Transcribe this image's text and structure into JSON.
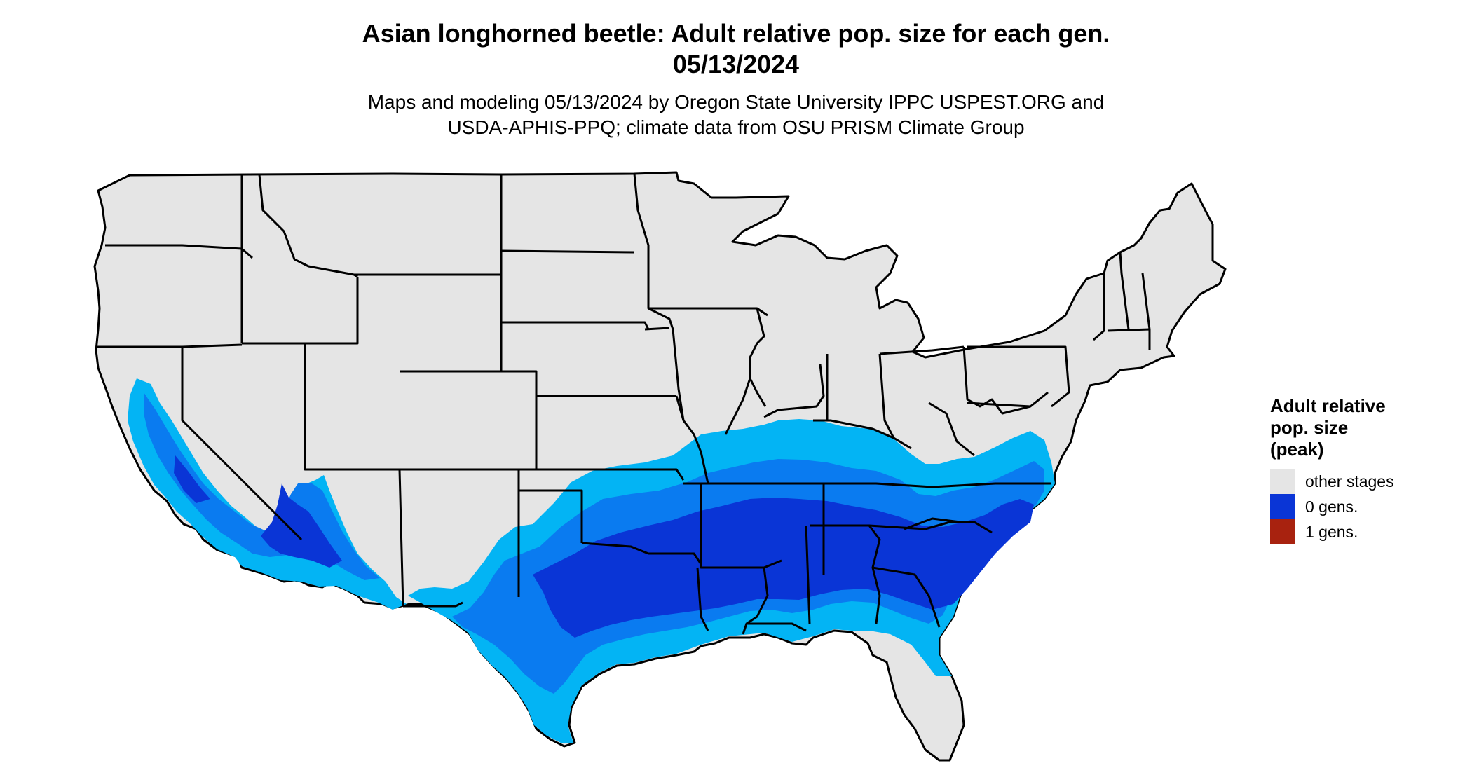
{
  "title": {
    "line1": "Asian longhorned beetle: Adult relative pop. size for each gen.",
    "line2": "05/13/2024"
  },
  "subtitle": {
    "line1": "Maps and modeling 05/13/2024 by Oregon State University IPPC USPEST.ORG and",
    "line2": "USDA-APHIS-PPQ; climate data from OSU PRISM Climate Group"
  },
  "legend": {
    "title_line1": "Adult relative",
    "title_line2": "pop. size",
    "title_line3": "(peak)",
    "items": [
      {
        "label": "other stages",
        "color": "#e5e5e5"
      },
      {
        "label": "0 gens.",
        "color": "#0a35d6"
      },
      {
        "label": "1 gens.",
        "color": "#a8220f"
      }
    ]
  },
  "map_colors": {
    "land": "#e5e5e5",
    "border": "#000000",
    "gen0_light": "#03b4f4",
    "gen0_mid": "#0a7bf0",
    "gen0_dark": "#0a35d6"
  }
}
